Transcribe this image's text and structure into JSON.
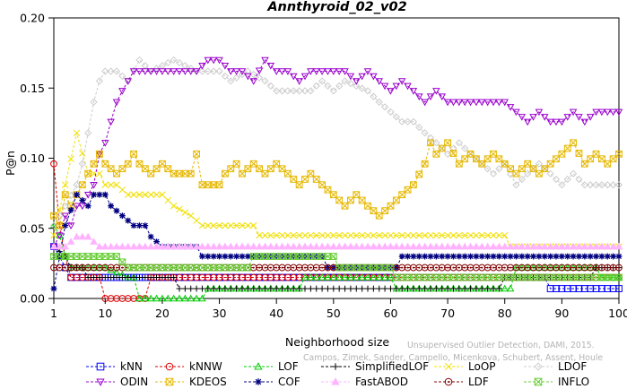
{
  "chart_data": {
    "type": "line",
    "title": "Annthyroid_02_v02",
    "xlabel": "Neighborhood size",
    "ylabel": "P@n",
    "xlim": [
      1,
      100
    ],
    "ylim": [
      0,
      0.2
    ],
    "xticks": [
      1,
      10,
      20,
      30,
      40,
      50,
      60,
      70,
      80,
      90,
      100
    ],
    "yticks": [
      0.0,
      0.05,
      0.1,
      0.15,
      0.2
    ],
    "ytick_labels": [
      "0.00",
      "0.05",
      "0.10",
      "0.15",
      "0.20"
    ],
    "grid": false,
    "legend_position": "bottom",
    "watermark": [
      "Unsupervised Outlier Detection, DAMI, 2015.",
      "Campos, Zimek, Sander, Campello, Micenkova, Schubert, Assent, Houle"
    ],
    "series": [
      {
        "name": "kNN",
        "color": "#0000ff",
        "marker": "square",
        "points": [
          [
            1,
            0.037
          ],
          [
            2,
            0.03
          ],
          [
            3,
            0.022
          ],
          [
            4,
            0.015
          ],
          [
            10,
            0.015
          ],
          [
            60,
            0.015
          ],
          [
            61,
            0.015
          ],
          [
            70,
            0.015
          ],
          [
            80,
            0.015
          ],
          [
            87,
            0.015
          ],
          [
            88,
            0.007
          ],
          [
            100,
            0.007
          ]
        ]
      },
      {
        "name": "kNNW",
        "color": "#dd0000",
        "marker": "circle",
        "points": [
          [
            1,
            0.096
          ],
          [
            2,
            0.052
          ],
          [
            3,
            0.03
          ],
          [
            4,
            0.015
          ],
          [
            9,
            0.015
          ],
          [
            10,
            0.0
          ],
          [
            17,
            0.0
          ],
          [
            18,
            0.015
          ],
          [
            100,
            0.015
          ]
        ]
      },
      {
        "name": "LOF",
        "color": "#00cc00",
        "marker": "triangle-up",
        "points": [
          [
            1,
            0.052
          ],
          [
            2,
            0.045
          ],
          [
            3,
            0.03
          ],
          [
            4,
            0.022
          ],
          [
            10,
            0.022
          ],
          [
            14,
            0.015
          ],
          [
            15,
            0.015
          ],
          [
            16,
            0.0
          ],
          [
            27,
            0.0
          ],
          [
            28,
            0.007
          ],
          [
            44,
            0.007
          ],
          [
            45,
            0.015
          ],
          [
            60,
            0.015
          ],
          [
            61,
            0.007
          ],
          [
            81,
            0.007
          ],
          [
            82,
            0.022
          ],
          [
            96,
            0.022
          ],
          [
            97,
            0.015
          ],
          [
            100,
            0.015
          ]
        ]
      },
      {
        "name": "SimplifiedLOF",
        "color": "#000000",
        "marker": "plus",
        "points": [
          [
            1,
            0.037
          ],
          [
            3,
            0.03
          ],
          [
            4,
            0.022
          ],
          [
            6,
            0.022
          ],
          [
            7,
            0.015
          ],
          [
            22,
            0.015
          ],
          [
            23,
            0.007
          ],
          [
            79,
            0.007
          ],
          [
            80,
            0.015
          ],
          [
            95,
            0.015
          ],
          [
            96,
            0.022
          ],
          [
            100,
            0.022
          ]
        ]
      },
      {
        "name": "LoOP",
        "color": "#f0e000",
        "marker": "cross",
        "points": [
          [
            1,
            0.045
          ],
          [
            3,
            0.081
          ],
          [
            5,
            0.118
          ],
          [
            7,
            0.089
          ],
          [
            9,
            0.089
          ],
          [
            10,
            0.081
          ],
          [
            12,
            0.081
          ],
          [
            14,
            0.074
          ],
          [
            20,
            0.074
          ],
          [
            22,
            0.066
          ],
          [
            25,
            0.059
          ],
          [
            27,
            0.052
          ],
          [
            36,
            0.052
          ],
          [
            37,
            0.045
          ],
          [
            80,
            0.045
          ],
          [
            81,
            0.037
          ],
          [
            100,
            0.037
          ]
        ]
      },
      {
        "name": "LDOF",
        "color": "#cccccc",
        "marker": "diamond",
        "points": [
          [
            1,
            0.052
          ],
          [
            3,
            0.066
          ],
          [
            5,
            0.081
          ],
          [
            6,
            0.096
          ],
          [
            7,
            0.118
          ],
          [
            8,
            0.14
          ],
          [
            9,
            0.155
          ],
          [
            10,
            0.162
          ],
          [
            12,
            0.162
          ],
          [
            14,
            0.155
          ],
          [
            16,
            0.17
          ],
          [
            18,
            0.162
          ],
          [
            22,
            0.17
          ],
          [
            26,
            0.162
          ],
          [
            30,
            0.162
          ],
          [
            32,
            0.155
          ],
          [
            35,
            0.162
          ],
          [
            38,
            0.155
          ],
          [
            40,
            0.148
          ],
          [
            46,
            0.148
          ],
          [
            48,
            0.155
          ],
          [
            50,
            0.148
          ],
          [
            52,
            0.155
          ],
          [
            56,
            0.148
          ],
          [
            58,
            0.14
          ],
          [
            60,
            0.133
          ],
          [
            62,
            0.126
          ],
          [
            64,
            0.126
          ],
          [
            66,
            0.118
          ],
          [
            68,
            0.111
          ],
          [
            70,
            0.103
          ],
          [
            72,
            0.111
          ],
          [
            74,
            0.103
          ],
          [
            76,
            0.096
          ],
          [
            78,
            0.089
          ],
          [
            80,
            0.096
          ],
          [
            82,
            0.081
          ],
          [
            84,
            0.089
          ],
          [
            86,
            0.096
          ],
          [
            88,
            0.089
          ],
          [
            90,
            0.081
          ],
          [
            92,
            0.089
          ],
          [
            94,
            0.081
          ],
          [
            100,
            0.081
          ]
        ]
      },
      {
        "name": "ODIN",
        "color": "#9900cc",
        "marker": "triangle-down",
        "points": [
          [
            1,
            0.037
          ],
          [
            2,
            0.045
          ],
          [
            3,
            0.059
          ],
          [
            4,
            0.052
          ],
          [
            5,
            0.066
          ],
          [
            6,
            0.066
          ],
          [
            7,
            0.074
          ],
          [
            8,
            0.081
          ],
          [
            9,
            0.103
          ],
          [
            10,
            0.111
          ],
          [
            11,
            0.126
          ],
          [
            12,
            0.14
          ],
          [
            13,
            0.148
          ],
          [
            14,
            0.155
          ],
          [
            15,
            0.162
          ],
          [
            16,
            0.162
          ],
          [
            18,
            0.162
          ],
          [
            22,
            0.162
          ],
          [
            24,
            0.162
          ],
          [
            26,
            0.162
          ],
          [
            28,
            0.17
          ],
          [
            30,
            0.17
          ],
          [
            32,
            0.162
          ],
          [
            34,
            0.162
          ],
          [
            36,
            0.155
          ],
          [
            38,
            0.17
          ],
          [
            40,
            0.162
          ],
          [
            42,
            0.162
          ],
          [
            44,
            0.155
          ],
          [
            46,
            0.162
          ],
          [
            48,
            0.162
          ],
          [
            52,
            0.162
          ],
          [
            54,
            0.155
          ],
          [
            56,
            0.162
          ],
          [
            58,
            0.155
          ],
          [
            60,
            0.148
          ],
          [
            62,
            0.155
          ],
          [
            64,
            0.148
          ],
          [
            66,
            0.14
          ],
          [
            68,
            0.148
          ],
          [
            70,
            0.14
          ],
          [
            72,
            0.14
          ],
          [
            74,
            0.14
          ],
          [
            78,
            0.14
          ],
          [
            80,
            0.14
          ],
          [
            82,
            0.133
          ],
          [
            84,
            0.126
          ],
          [
            86,
            0.133
          ],
          [
            88,
            0.126
          ],
          [
            90,
            0.126
          ],
          [
            92,
            0.133
          ],
          [
            94,
            0.126
          ],
          [
            96,
            0.133
          ],
          [
            100,
            0.133
          ]
        ]
      },
      {
        "name": "KDEOS",
        "color": "#e6b800",
        "marker": "boxed-x",
        "points": [
          [
            1,
            0.059
          ],
          [
            2,
            0.052
          ],
          [
            3,
            0.074
          ],
          [
            4,
            0.066
          ],
          [
            5,
            0.074
          ],
          [
            6,
            0.081
          ],
          [
            7,
            0.089
          ],
          [
            8,
            0.096
          ],
          [
            9,
            0.103
          ],
          [
            10,
            0.096
          ],
          [
            12,
            0.089
          ],
          [
            14,
            0.096
          ],
          [
            15,
            0.103
          ],
          [
            16,
            0.096
          ],
          [
            18,
            0.089
          ],
          [
            20,
            0.096
          ],
          [
            22,
            0.089
          ],
          [
            25,
            0.089
          ],
          [
            26,
            0.103
          ],
          [
            27,
            0.081
          ],
          [
            30,
            0.081
          ],
          [
            31,
            0.089
          ],
          [
            33,
            0.096
          ],
          [
            34,
            0.089
          ],
          [
            36,
            0.096
          ],
          [
            38,
            0.089
          ],
          [
            40,
            0.096
          ],
          [
            42,
            0.089
          ],
          [
            44,
            0.081
          ],
          [
            46,
            0.089
          ],
          [
            48,
            0.081
          ],
          [
            50,
            0.074
          ],
          [
            52,
            0.066
          ],
          [
            54,
            0.074
          ],
          [
            56,
            0.066
          ],
          [
            58,
            0.059
          ],
          [
            60,
            0.066
          ],
          [
            62,
            0.074
          ],
          [
            64,
            0.081
          ],
          [
            66,
            0.096
          ],
          [
            67,
            0.111
          ],
          [
            68,
            0.103
          ],
          [
            70,
            0.111
          ],
          [
            72,
            0.096
          ],
          [
            74,
            0.103
          ],
          [
            76,
            0.096
          ],
          [
            78,
            0.103
          ],
          [
            80,
            0.096
          ],
          [
            82,
            0.089
          ],
          [
            84,
            0.096
          ],
          [
            86,
            0.089
          ],
          [
            88,
            0.096
          ],
          [
            90,
            0.103
          ],
          [
            92,
            0.111
          ],
          [
            94,
            0.096
          ],
          [
            96,
            0.103
          ],
          [
            98,
            0.096
          ],
          [
            100,
            0.103
          ]
        ]
      },
      {
        "name": "COF",
        "color": "#000080",
        "marker": "asterisk",
        "points": [
          [
            1,
            0.007
          ],
          [
            3,
            0.052
          ],
          [
            5,
            0.074
          ],
          [
            7,
            0.066
          ],
          [
            8,
            0.074
          ],
          [
            10,
            0.074
          ],
          [
            11,
            0.066
          ],
          [
            13,
            0.059
          ],
          [
            15,
            0.052
          ],
          [
            17,
            0.052
          ],
          [
            18,
            0.044
          ],
          [
            20,
            0.037
          ],
          [
            23,
            0.037
          ],
          [
            24,
            0.037
          ],
          [
            26,
            0.037
          ],
          [
            27,
            0.03
          ],
          [
            48,
            0.03
          ],
          [
            49,
            0.022
          ],
          [
            61,
            0.022
          ],
          [
            62,
            0.03
          ],
          [
            100,
            0.03
          ]
        ]
      },
      {
        "name": "FastABOD",
        "color": "#ffb3ff",
        "marker": "triangle-filled",
        "points": [
          [
            1,
            0.037
          ],
          [
            3,
            0.037
          ],
          [
            5,
            0.044
          ],
          [
            7,
            0.044
          ],
          [
            9,
            0.037
          ],
          [
            100,
            0.037
          ]
        ]
      },
      {
        "name": "LDF",
        "color": "#800000",
        "marker": "circle-dot",
        "points": [
          [
            1,
            0.022
          ],
          [
            5,
            0.022
          ],
          [
            10,
            0.022
          ],
          [
            20,
            0.022
          ],
          [
            40,
            0.022
          ],
          [
            60,
            0.022
          ],
          [
            80,
            0.022
          ],
          [
            100,
            0.022
          ]
        ]
      },
      {
        "name": "INFLO",
        "color": "#66cc33",
        "marker": "boxed-x",
        "points": [
          [
            1,
            0.03
          ],
          [
            3,
            0.03
          ],
          [
            5,
            0.03
          ],
          [
            7,
            0.03
          ],
          [
            9,
            0.03
          ],
          [
            12,
            0.03
          ],
          [
            14,
            0.022
          ],
          [
            15,
            0.022
          ],
          [
            35,
            0.022
          ],
          [
            36,
            0.03
          ],
          [
            50,
            0.03
          ],
          [
            51,
            0.022
          ],
          [
            60,
            0.022
          ],
          [
            61,
            0.015
          ],
          [
            100,
            0.015
          ]
        ]
      }
    ]
  }
}
